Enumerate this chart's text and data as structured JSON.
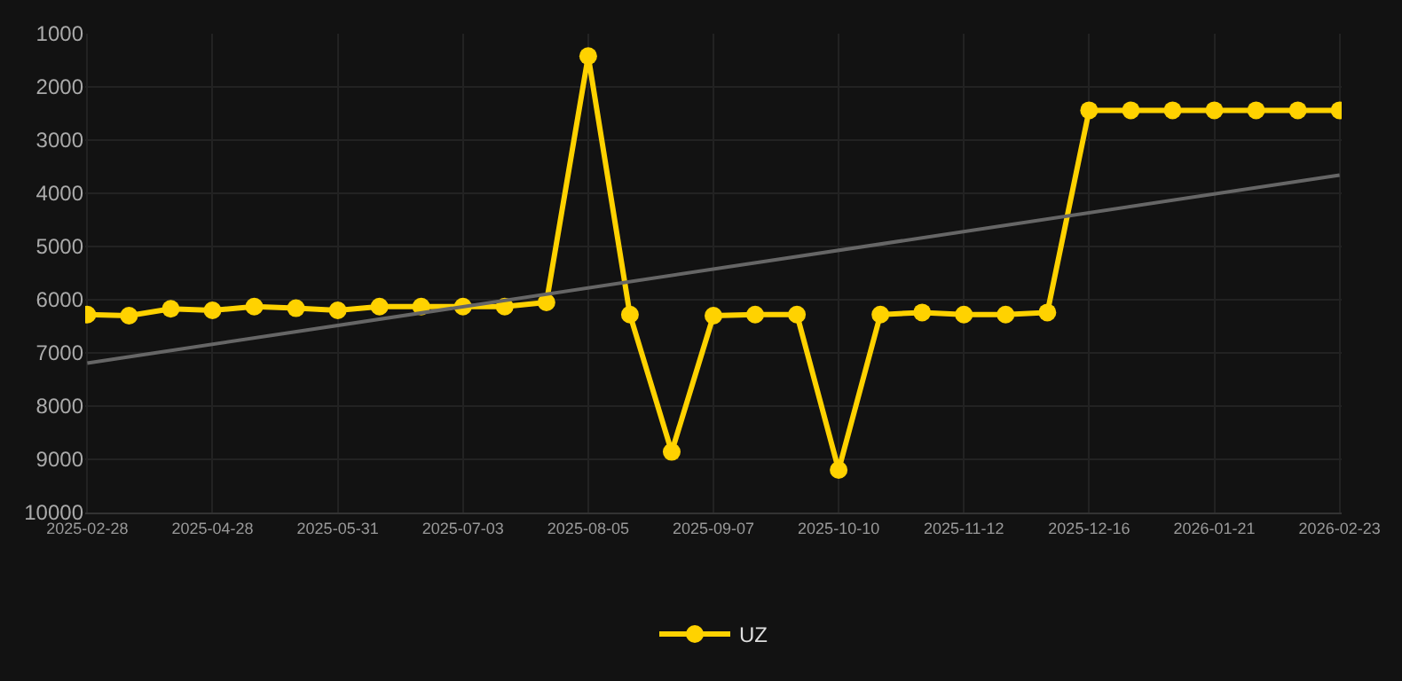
{
  "chart_data": {
    "type": "line",
    "categories": [
      "2025-02-28",
      null,
      null,
      "2025-04-28",
      null,
      null,
      "2025-05-31",
      null,
      null,
      "2025-07-03",
      null,
      null,
      "2025-08-05",
      null,
      null,
      "2025-09-07",
      null,
      null,
      "2025-10-10",
      null,
      null,
      "2025-11-12",
      null,
      null,
      "2025-12-16",
      null,
      null,
      "2026-01-21",
      null,
      null,
      "2026-02-23"
    ],
    "series": [
      {
        "name": "UZ",
        "color": "#ffd200",
        "marker": "circle",
        "values": [
          6280,
          6300,
          6170,
          6200,
          6130,
          6160,
          6200,
          6130,
          6130,
          6130,
          6130,
          6050,
          1420,
          6280,
          8860,
          6300,
          6280,
          6280,
          9200,
          6280,
          6240,
          6280,
          6280,
          6240,
          2440,
          2440,
          2440,
          2440,
          2440,
          2440,
          2440
        ]
      },
      {
        "type": "line",
        "color": "#666666",
        "marker": "none",
        "values": [
          7190,
          null,
          null,
          null,
          null,
          null,
          null,
          null,
          null,
          null,
          null,
          null,
          null,
          null,
          null,
          null,
          null,
          null,
          null,
          null,
          null,
          null,
          null,
          null,
          null,
          null,
          null,
          null,
          null,
          null,
          3660
        ]
      }
    ],
    "ylim": [
      10000,
      1000
    ],
    "yticks": [
      1000,
      2000,
      3000,
      4000,
      5000,
      6000,
      7000,
      8000,
      9000,
      10000
    ],
    "grid": true,
    "legend": "bottom"
  }
}
